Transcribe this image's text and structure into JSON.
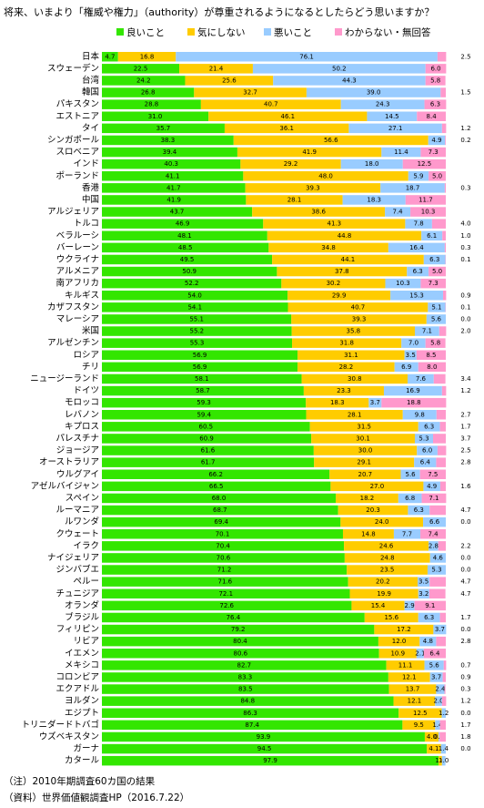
{
  "chart_data": {
    "type": "bar",
    "orientation": "horizontal",
    "stacked": true,
    "title": "将来、いまより「権威や権力」（authority）が尊重されるようになるとしたらどう思いますか？",
    "notes": [
      "（注）2010年期調査60カ国の結果",
      "（資料）世界価値観調査HP（2016.7.22）"
    ],
    "xlim": [
      0,
      100
    ],
    "categories": [
      "日本",
      "スウェーデン",
      "台湾",
      "韓国",
      "パキスタン",
      "エストニア",
      "タイ",
      "シンガポール",
      "スロベニア",
      "インド",
      "ポーランド",
      "香港",
      "中国",
      "アルジェリア",
      "トルコ",
      "ベラルーシ",
      "バーレーン",
      "ウクライナ",
      "アルメニア",
      "南アフリカ",
      "キルギス",
      "カザフスタン",
      "マレーシア",
      "米国",
      "アルゼンチン",
      "ロシア",
      "チリ",
      "ニュージーランド",
      "ドイツ",
      "モロッコ",
      "レバノン",
      "キプロス",
      "パレスチナ",
      "ジョージア",
      "オーストラリア",
      "ウルグアイ",
      "アゼルバイジャン",
      "スペイン",
      "ルーマニア",
      "ルワンダ",
      "クウェート",
      "イラク",
      "ナイジェリア",
      "ジンバブエ",
      "ペルー",
      "チュニジア",
      "オランダ",
      "ブラジル",
      "フィリピン",
      "リビア",
      "イエメン",
      "メキシコ",
      "コロンビア",
      "エクアドル",
      "ヨルダン",
      "エジプト",
      "トリニダードトバゴ",
      "ウズベキスタン",
      "ガーナ",
      "カタール"
    ],
    "series": [
      {
        "name": "良いこと",
        "color": "#33e600",
        "values": [
          4.7,
          22.5,
          24.2,
          26.8,
          28.8,
          31.0,
          35.7,
          38.3,
          39.4,
          40.3,
          41.1,
          41.7,
          41.9,
          43.7,
          46.9,
          48.1,
          48.5,
          49.5,
          50.9,
          52.2,
          54.0,
          54.1,
          55.1,
          55.2,
          55.3,
          56.9,
          56.9,
          58.1,
          58.7,
          59.3,
          59.4,
          60.5,
          60.9,
          61.6,
          61.7,
          66.2,
          66.5,
          68.0,
          68.7,
          69.4,
          70.1,
          70.4,
          70.6,
          71.2,
          71.6,
          72.1,
          72.6,
          76.4,
          79.2,
          80.4,
          80.6,
          82.7,
          83.3,
          83.5,
          84.8,
          86.3,
          87.4,
          93.9,
          94.5,
          97.9
        ],
        "value_labels": [
          "4.7",
          "22.5",
          "24.2",
          "26.8",
          "28.8",
          "31.0",
          "35.7",
          "38.3",
          "39.4",
          "40.3",
          "41.1",
          "41.7",
          "41.9",
          "43.7",
          "46.9",
          "48.1",
          "48.5",
          "49.5",
          "50.9",
          "52.2",
          "54.0",
          "54.1",
          "55.1",
          "55.2",
          "55.3",
          "56.9",
          "56.9",
          "58.1",
          "58.7",
          "59.3",
          "59.4",
          "60.5",
          "60.9",
          "61.6",
          "61.7",
          "66.2",
          "66.5",
          "68.0",
          "68.7",
          "69.4",
          "70.1",
          "70.4",
          "70.6",
          "71.2",
          "71.6",
          "72.1",
          "72.6",
          "76.4",
          "79.2",
          "80.4",
          "80.6",
          "82.7",
          "83.3",
          "83.5",
          "84.8",
          "86.3",
          "87.4",
          "93.9",
          "94.5",
          "97.9"
        ]
      },
      {
        "name": "気にしない",
        "color": "#ffcc00",
        "values": [
          16.8,
          21.4,
          25.6,
          32.7,
          40.7,
          46.1,
          36.1,
          56.6,
          41.9,
          29.2,
          48.0,
          39.3,
          28.1,
          38.6,
          41.3,
          44.8,
          34.8,
          44.1,
          37.8,
          30.2,
          29.9,
          40.7,
          39.3,
          35.8,
          31.8,
          31.1,
          28.2,
          30.8,
          23.3,
          18.3,
          28.1,
          31.5,
          30.1,
          30.0,
          29.1,
          20.7,
          27.0,
          18.2,
          20.3,
          24.0,
          14.8,
          24.6,
          24.8,
          23.5,
          20.2,
          19.9,
          15.4,
          15.6,
          17.2,
          12.0,
          10.9,
          11.1,
          12.1,
          13.7,
          12.1,
          12.5,
          9.5,
          4.0,
          4.1,
          1.0
        ],
        "value_labels": [
          "16.8",
          "21.4",
          "25.6",
          "32.7",
          "40.7",
          "46.1",
          "36.1",
          "56.6",
          "41.9",
          "29.2",
          "48.0",
          "39.3",
          "28.1",
          "38.6",
          "41.3",
          "44.8",
          "34.8",
          "44.1",
          "37.8",
          "30.2",
          "29.9",
          "40.7",
          "39.3",
          "35.8",
          "31.8",
          "31.1",
          "28.2",
          "30.8",
          "23.3",
          "18.3",
          "28.1",
          "31.5",
          "30.1",
          "30.0",
          "29.1",
          "20.7",
          "27.0",
          "18.2",
          "20.3",
          "24.0",
          "14.8",
          "24.6",
          "24.8",
          "23.5",
          "20.2",
          "19.9",
          "15.4",
          "15.6",
          "17.2",
          "12.0",
          "10.9",
          "11.1",
          "12.1",
          "13.7",
          "12.1",
          "12.5",
          "9.5",
          "4.0",
          "4.1",
          "1.0"
        ]
      },
      {
        "name": "悪いこと",
        "color": "#99ccff",
        "values": [
          76.1,
          50.2,
          44.3,
          39.0,
          24.3,
          14.5,
          27.1,
          4.9,
          11.4,
          18.0,
          5.9,
          18.7,
          18.3,
          7.4,
          7.8,
          6.1,
          16.4,
          6.3,
          6.3,
          10.3,
          15.3,
          5.1,
          5.6,
          7.1,
          7.0,
          3.5,
          6.9,
          7.6,
          16.9,
          3.7,
          9.8,
          6.3,
          5.3,
          6.0,
          6.4,
          5.6,
          4.9,
          6.8,
          6.3,
          6.6,
          7.7,
          2.8,
          4.6,
          5.3,
          3.5,
          3.2,
          2.9,
          6.3,
          3.7,
          4.8,
          2.1,
          5.6,
          3.7,
          2.4,
          2.0,
          1.2,
          1.4,
          0.3,
          1.4,
          1.0
        ],
        "value_labels": [
          "76.1",
          "50.2",
          "44.3",
          "39.0",
          "24.3",
          "14.5",
          "27.1",
          "4.9",
          "11.4",
          "18.0",
          "5.9",
          "18.7",
          "18.3",
          "7.4",
          "7.8",
          "6.1",
          "16.4",
          "6.3",
          "6.3",
          "10.3",
          "15.3",
          "5.1",
          "5.6",
          "7.1",
          "7.0",
          "3.5",
          "6.9",
          "7.6",
          "16.9",
          "3.7",
          "9.8",
          "6.3",
          "5.3",
          "6.0",
          "6.4",
          "5.6",
          "4.9",
          "6.8",
          "6.3",
          "6.6",
          "7.7",
          "2.8",
          "4.6",
          "5.3",
          "3.5",
          "3.2",
          "2.9",
          "6.3",
          "3.7",
          "4.8",
          "2.1",
          "5.6",
          "3.7",
          "2.4",
          "2.0",
          "1.2",
          "1.4",
          "0.3",
          "1.4",
          "1.0"
        ]
      },
      {
        "name": "わからない・無回答",
        "color": "#ff99cc",
        "values": [
          2.5,
          6.0,
          5.8,
          1.5,
          6.3,
          8.4,
          1.2,
          0.2,
          7.3,
          12.5,
          5.0,
          0.3,
          11.7,
          10.3,
          4.0,
          1.0,
          0.3,
          0.1,
          5.0,
          7.3,
          0.9,
          0.1,
          0.0,
          2.0,
          5.8,
          8.5,
          8.0,
          3.4,
          1.2,
          18.8,
          2.7,
          1.7,
          3.7,
          2.5,
          2.8,
          7.5,
          1.6,
          7.1,
          4.7,
          0.0,
          7.4,
          2.2,
          0.0,
          0.0,
          4.7,
          4.7,
          9.1,
          1.7,
          0.0,
          2.8,
          6.4,
          0.7,
          0.9,
          0.3,
          1.2,
          0.0,
          1.7,
          1.8,
          0.0,
          null
        ],
        "value_labels": [
          "2.5",
          "6.0",
          "5.8",
          "1.5",
          "6.3",
          "8.4",
          "1.2",
          "0.2",
          "7.3",
          "12.5",
          "5.0",
          "0.3",
          "11.7",
          "10.3",
          "4.0",
          "1.0",
          "0.3",
          "0.1",
          "5.0",
          "7.3",
          "0.9",
          "0.1",
          "0.0",
          "2.0",
          "5.8",
          "8.5",
          "8.0",
          "3.4",
          "1.2",
          "18.8",
          "2.7",
          "1.7",
          "3.7",
          "2.5",
          "2.8",
          "7.5",
          "1.6",
          "7.1",
          "4.7",
          "0.0",
          "7.4",
          "2.2",
          "0.0",
          "0.0",
          "4.7",
          "4.7",
          "9.1",
          "1.7",
          "0.0",
          "2.8",
          "6.4",
          "0.7",
          "0.9",
          "0.3",
          "1.2",
          "0.0",
          "1.7",
          "1.8",
          "0.0",
          null
        ]
      }
    ]
  }
}
